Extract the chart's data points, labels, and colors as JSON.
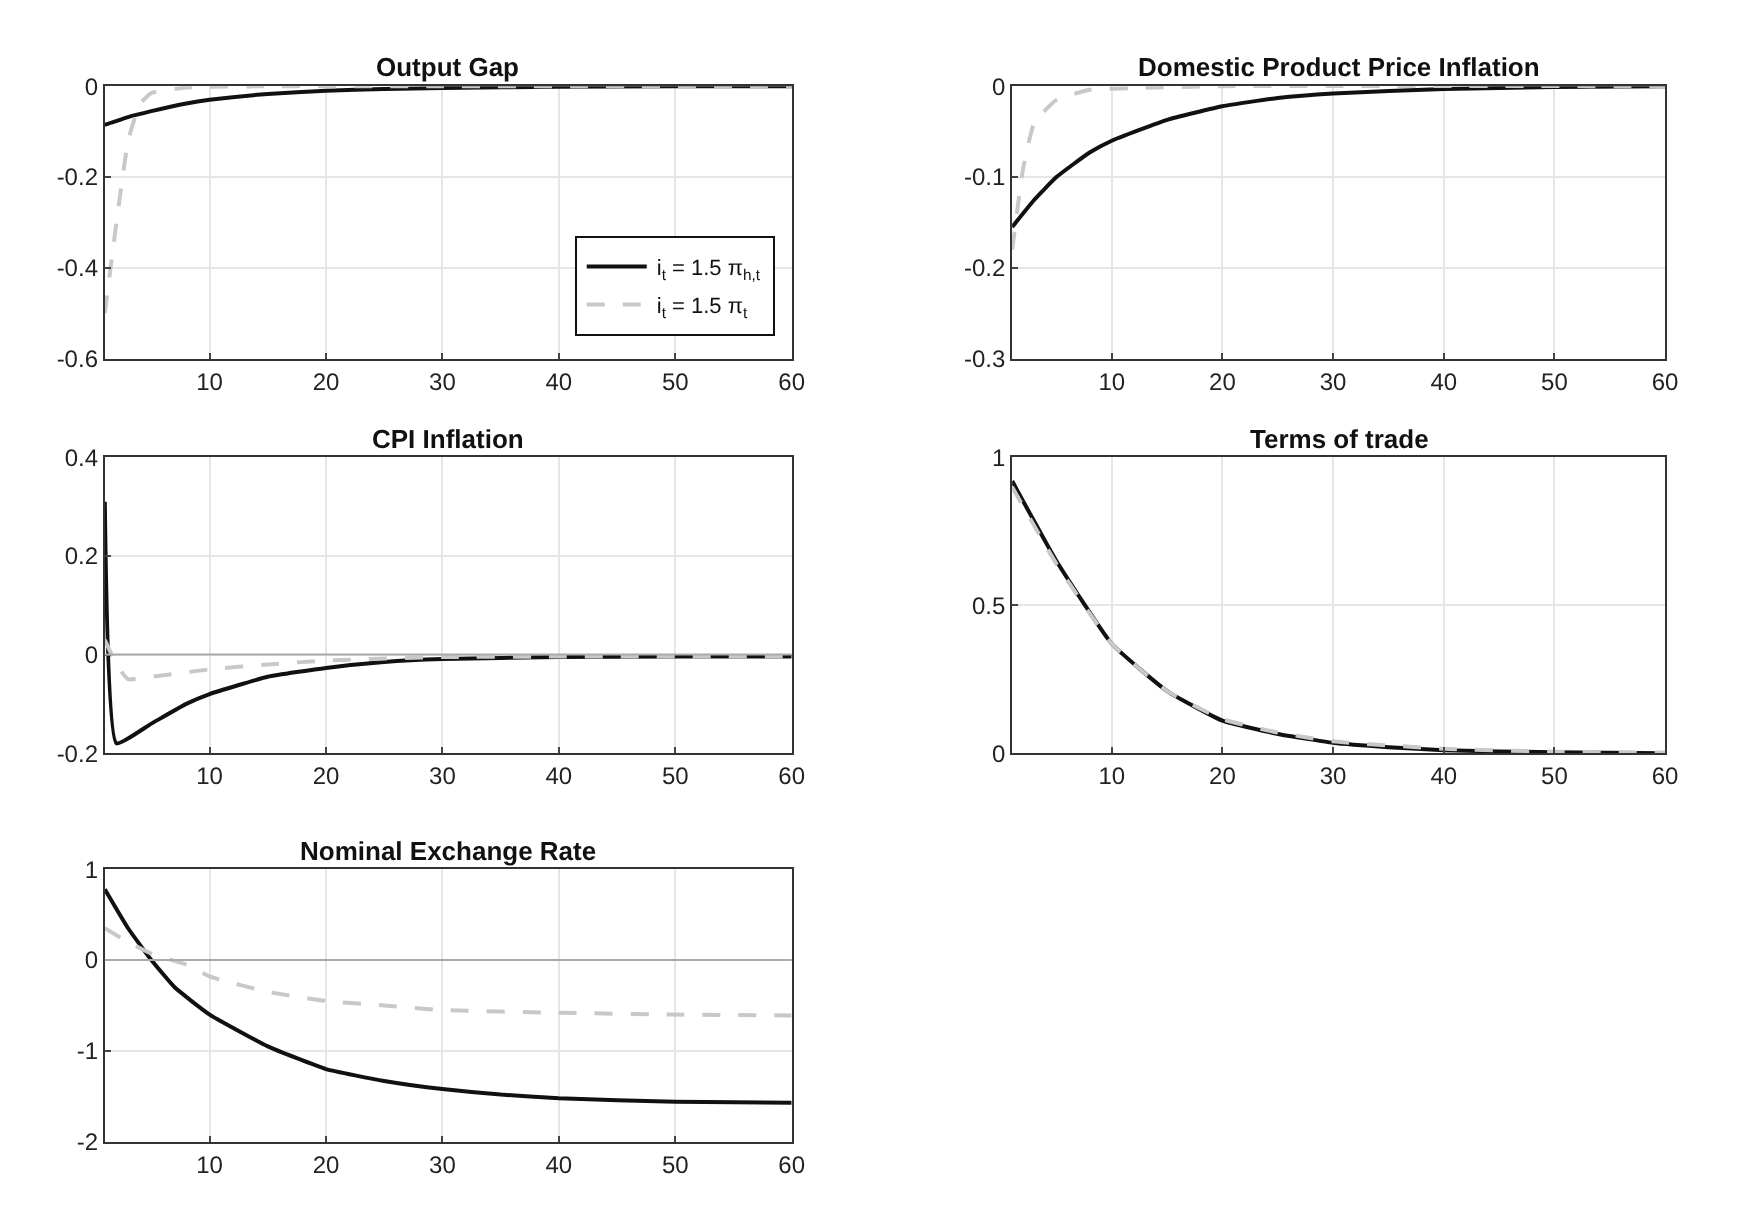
{
  "chart_data": [
    {
      "type": "line",
      "title": "Output Gap",
      "xlim": [
        1,
        60
      ],
      "xticks": [
        10,
        20,
        30,
        40,
        50,
        60
      ],
      "ylim": [
        -0.6,
        0
      ],
      "yticks": [
        -0.6,
        -0.4,
        -0.2,
        0
      ],
      "grid": true,
      "legend": "bottom right",
      "series": [
        {
          "name": "i$_{t}$ = 1.5 π$_{h,t}$",
          "color": "#111111",
          "line_style": "solid",
          "x": [
            1,
            3,
            5,
            8,
            10,
            15,
            20,
            25,
            30,
            40,
            50,
            60
          ],
          "values": [
            -0.085,
            -0.068,
            -0.055,
            -0.038,
            -0.03,
            -0.017,
            -0.01,
            -0.006,
            -0.004,
            -0.001,
            0,
            0
          ]
        },
        {
          "name": "i$_{t}$ = 1.5 π$_{t}$",
          "color": "#c8c8c8",
          "line_style": "dashed",
          "x": [
            1,
            2,
            3,
            4,
            5,
            8,
            15,
            30,
            60
          ],
          "values": [
            -0.5,
            -0.3,
            -0.12,
            -0.04,
            -0.015,
            -0.003,
            0,
            0,
            0
          ]
        }
      ]
    },
    {
      "type": "line",
      "title": "Domestic Product Price Inflation",
      "xlim": [
        1,
        60
      ],
      "xticks": [
        10,
        20,
        30,
        40,
        50,
        60
      ],
      "ylim": [
        -0.3,
        0
      ],
      "yticks": [
        -0.3,
        -0.2,
        -0.1,
        0
      ],
      "grid": true,
      "series": [
        {
          "color": "#111111",
          "line_style": "solid",
          "x": [
            1,
            3,
            5,
            8,
            10,
            15,
            20,
            25,
            30,
            40,
            50,
            60
          ],
          "values": [
            -0.155,
            -0.125,
            -0.1,
            -0.073,
            -0.06,
            -0.037,
            -0.022,
            -0.013,
            -0.008,
            -0.003,
            -0.001,
            0
          ]
        },
        {
          "color": "#c8c8c8",
          "line_style": "dashed",
          "x": [
            1,
            2,
            3,
            5,
            8,
            12,
            20,
            60
          ],
          "values": [
            -0.18,
            -0.09,
            -0.04,
            -0.015,
            -0.004,
            -0.002,
            0,
            0
          ]
        }
      ]
    },
    {
      "type": "line",
      "title": "CPI Inflation",
      "xlim": [
        1,
        60
      ],
      "xticks": [
        10,
        20,
        30,
        40,
        50,
        60
      ],
      "ylim": [
        -0.2,
        0.4
      ],
      "yticks": [
        -0.2,
        0,
        0.2,
        0.4
      ],
      "grid": true,
      "ref_lines": [
        {
          "axis": "y",
          "value": 0,
          "color": "#aaaaaa"
        }
      ],
      "series": [
        {
          "color": "#111111",
          "line_style": "solid",
          "x": [
            1,
            2,
            5,
            8,
            10,
            15,
            20,
            25,
            30,
            40,
            50,
            60
          ],
          "values": [
            0.31,
            -0.18,
            -0.14,
            -0.1,
            -0.08,
            -0.045,
            -0.027,
            -0.015,
            -0.009,
            -0.005,
            -0.004,
            -0.004
          ]
        },
        {
          "color": "#c8c8c8",
          "line_style": "dashed",
          "x": [
            1,
            2,
            3,
            5,
            10,
            15,
            20,
            30,
            40,
            60
          ],
          "values": [
            0.03,
            -0.02,
            -0.05,
            -0.045,
            -0.03,
            -0.02,
            -0.012,
            -0.005,
            -0.004,
            -0.004
          ]
        }
      ]
    },
    {
      "type": "line",
      "title": "Terms of trade",
      "xlim": [
        1,
        60
      ],
      "xticks": [
        10,
        20,
        30,
        40,
        50,
        60
      ],
      "ylim": [
        0,
        1
      ],
      "yticks": [
        0,
        0.5,
        1
      ],
      "grid": true,
      "series": [
        {
          "color": "#111111",
          "line_style": "solid",
          "x": [
            1,
            5,
            10,
            15,
            20,
            25,
            30,
            35,
            40,
            50,
            60
          ],
          "values": [
            0.92,
            0.65,
            0.37,
            0.21,
            0.11,
            0.065,
            0.035,
            0.02,
            0.01,
            0.003,
            0
          ]
        },
        {
          "color": "#c8c8c8",
          "line_style": "dashed",
          "x": [
            1,
            5,
            10,
            15,
            20,
            25,
            30,
            40,
            50,
            60
          ],
          "values": [
            0.9,
            0.64,
            0.37,
            0.21,
            0.115,
            0.07,
            0.04,
            0.015,
            0.005,
            0.002
          ]
        }
      ]
    },
    {
      "type": "line",
      "title": "Nominal Exchange Rate",
      "xlim": [
        1,
        60
      ],
      "xticks": [
        10,
        20,
        30,
        40,
        50,
        60
      ],
      "ylim": [
        -2,
        1
      ],
      "yticks": [
        -2,
        -1,
        0,
        1
      ],
      "grid": true,
      "ref_lines": [
        {
          "axis": "y",
          "value": 0,
          "color": "#aaaaaa"
        }
      ],
      "series": [
        {
          "color": "#111111",
          "line_style": "solid",
          "x": [
            1,
            3,
            5,
            7,
            10,
            15,
            20,
            25,
            30,
            35,
            40,
            50,
            60
          ],
          "values": [
            0.78,
            0.35,
            0.0,
            -0.3,
            -0.6,
            -0.95,
            -1.2,
            -1.33,
            -1.42,
            -1.48,
            -1.52,
            -1.56,
            -1.57
          ]
        },
        {
          "color": "#c8c8c8",
          "line_style": "dashed",
          "x": [
            1,
            3,
            5,
            8,
            10,
            15,
            20,
            25,
            30,
            40,
            50,
            60
          ],
          "values": [
            0.35,
            0.2,
            0.07,
            -0.05,
            -0.18,
            -0.35,
            -0.45,
            -0.5,
            -0.55,
            -0.58,
            -0.6,
            -0.61
          ]
        }
      ]
    }
  ]
}
